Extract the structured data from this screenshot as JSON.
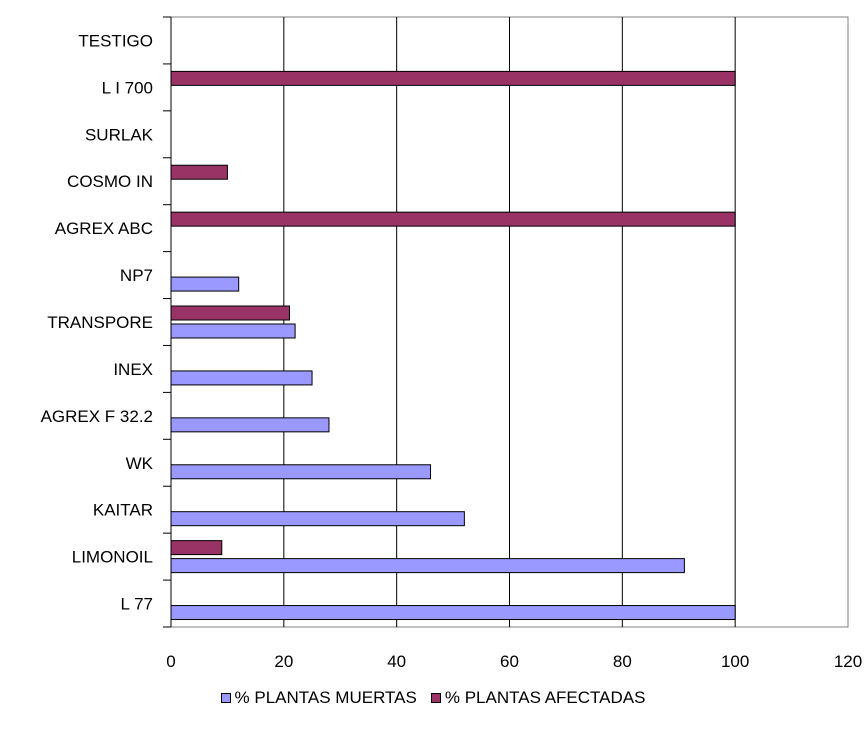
{
  "chart_data": {
    "type": "bar",
    "orientation": "horizontal",
    "categories": [
      "L 77",
      "LIMONOIL",
      "KAITAR",
      "WK",
      "AGREX F 32.2",
      "INEX",
      "TRANSPORE",
      "NP7",
      "AGREX ABC",
      "COSMO IN",
      "SURLAK",
      "L I 700",
      "TESTIGO"
    ],
    "series": [
      {
        "name": "% PLANTAS MUERTAS",
        "color": "#9999FF",
        "values": [
          100,
          91,
          52,
          46,
          28,
          25,
          22,
          12,
          0,
          0,
          0,
          0,
          0
        ]
      },
      {
        "name": "% PLANTAS AFECTADAS",
        "color": "#993366",
        "values": [
          0,
          9,
          0,
          0,
          0,
          0,
          21,
          0,
          100,
          10,
          0,
          100,
          0
        ]
      }
    ],
    "x_ticks": [
      0,
      20,
      40,
      60,
      80,
      100,
      120
    ],
    "xlim": [
      0,
      120
    ],
    "grid": "vertical",
    "legend_position": "bottom"
  }
}
